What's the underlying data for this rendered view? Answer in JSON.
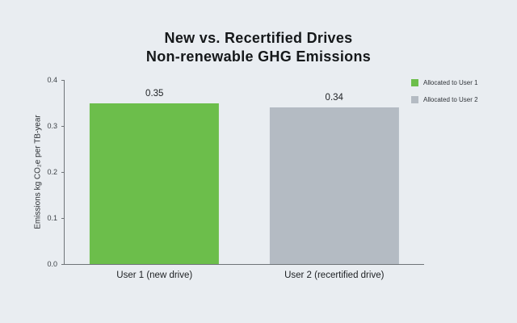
{
  "page": {
    "background": "#e9edf1"
  },
  "title": {
    "line1": "New vs. Recertified Drives",
    "line2": "Non-renewable GHG Emissions"
  },
  "chart_data": {
    "type": "bar",
    "title": "New vs. Recertified Drives",
    "subtitle": "Non-renewable GHG Emissions",
    "xlabel": "",
    "ylabel": "Emissions kg CO₂e per TB-year",
    "categories": [
      "User 1 (new drive)",
      "User 2 (recertified drive)"
    ],
    "values": [
      0.35,
      0.34
    ],
    "value_labels": [
      "0.35",
      "0.34"
    ],
    "bar_colors": [
      "#6cbe4b",
      "#b4bbc3"
    ],
    "ylim": [
      0,
      0.4
    ],
    "ytick_labels": [
      "0.0",
      "0.1",
      "0.2",
      "0.3",
      "0.4"
    ],
    "ytick_values": [
      0,
      0.1,
      0.2,
      0.3,
      0.4
    ],
    "grid": false,
    "legend": {
      "position": "top-right",
      "items": [
        {
          "label": "Allocated to User 1",
          "color": "#6cbe4b"
        },
        {
          "label": "Allocated to User 2",
          "color": "#b4bbc3"
        }
      ]
    },
    "colors": {
      "axis_line": "#6f7478",
      "tick_text": "#3a3f44",
      "title_text": "#15181a"
    }
  }
}
